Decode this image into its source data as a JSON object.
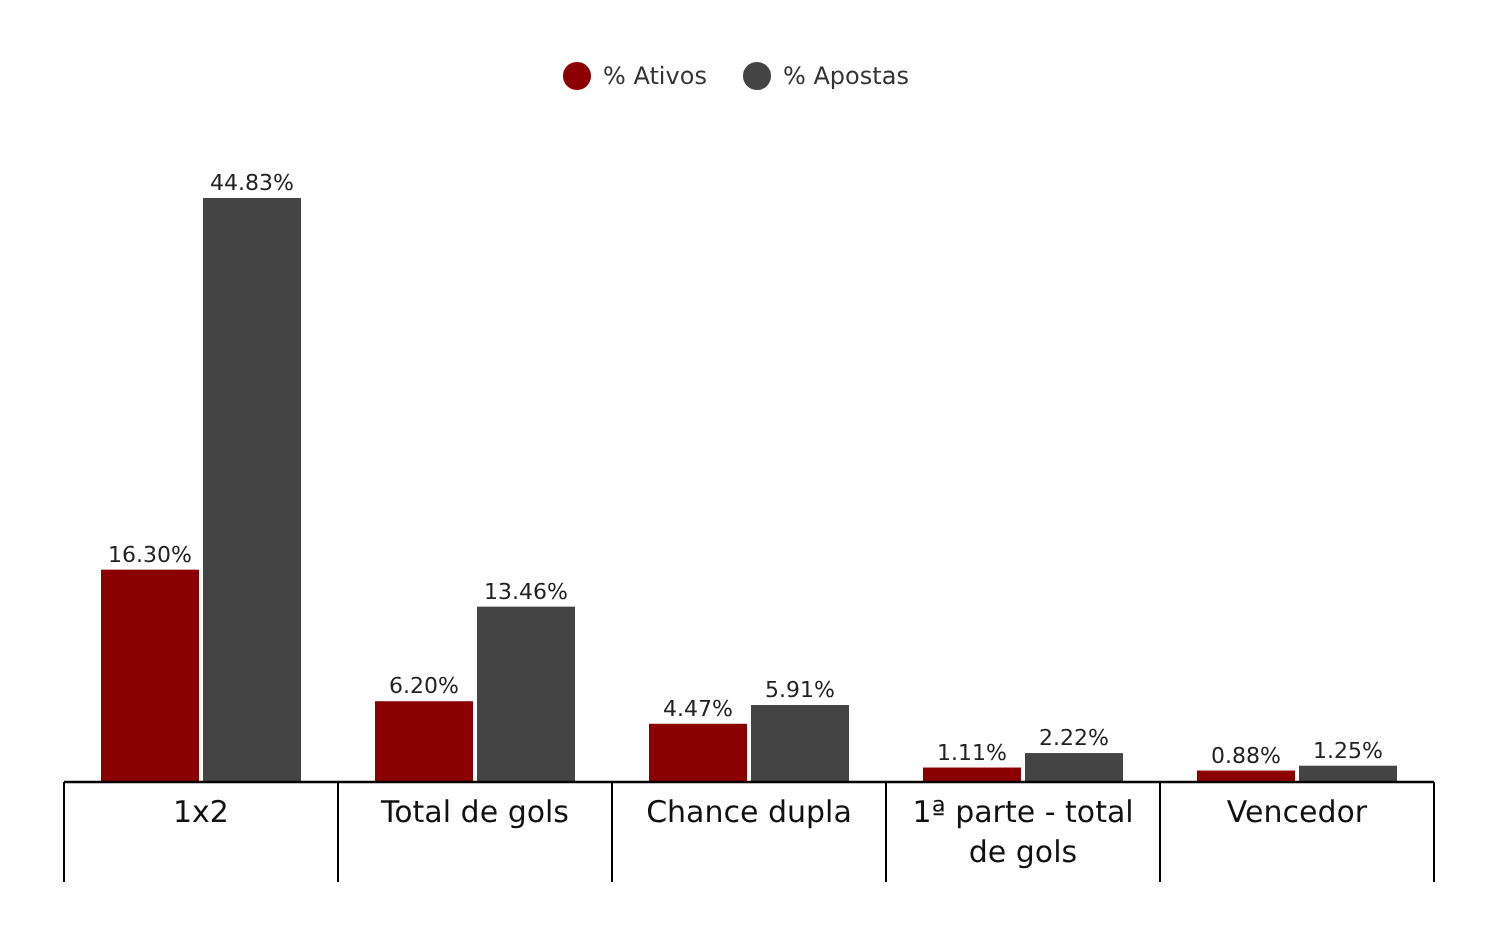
{
  "chart_data": {
    "type": "bar",
    "categories": [
      "1x2",
      "Total de gols",
      "Chance dupla",
      "1ª parte - total de gols",
      "Vencedor"
    ],
    "series": [
      {
        "name": "% Ativos",
        "color": "#8b0000",
        "values": [
          16.3,
          6.2,
          4.47,
          1.11,
          0.88
        ],
        "value_labels": [
          "16.30%",
          "6.20%",
          "4.47%",
          "1.11%",
          "0.88%"
        ]
      },
      {
        "name": "% Apostas",
        "color": "#444444",
        "values": [
          44.83,
          13.46,
          5.91,
          2.22,
          1.25
        ],
        "value_labels": [
          "44.83%",
          "13.46%",
          "5.91%",
          "2.22%",
          "1.25%"
        ]
      }
    ],
    "legend": "top"
  }
}
